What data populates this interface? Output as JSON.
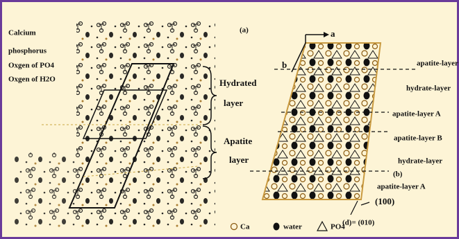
{
  "legend_left": [
    "Calcium",
    "phosphorus",
    "Oxgen of PO4",
    "Oxgen of H2O"
  ],
  "brackets": [
    {
      "line1": "Hydrated",
      "line2": "layer"
    },
    {
      "line1": "Apatite",
      "line2": "layer"
    }
  ],
  "panel_a": "(a)",
  "axes": {
    "a": "a",
    "b": "b"
  },
  "layer_labels": [
    "apatite-layer",
    "hydrate-layer",
    "apatite-layer A",
    "apatite-layer B",
    "hydrate-layer",
    "(b)",
    "apatite-layer A",
    "(100)",
    "(d)= (010)"
  ],
  "legend_bottom": [
    "Ca",
    "water",
    "PO4"
  ]
}
